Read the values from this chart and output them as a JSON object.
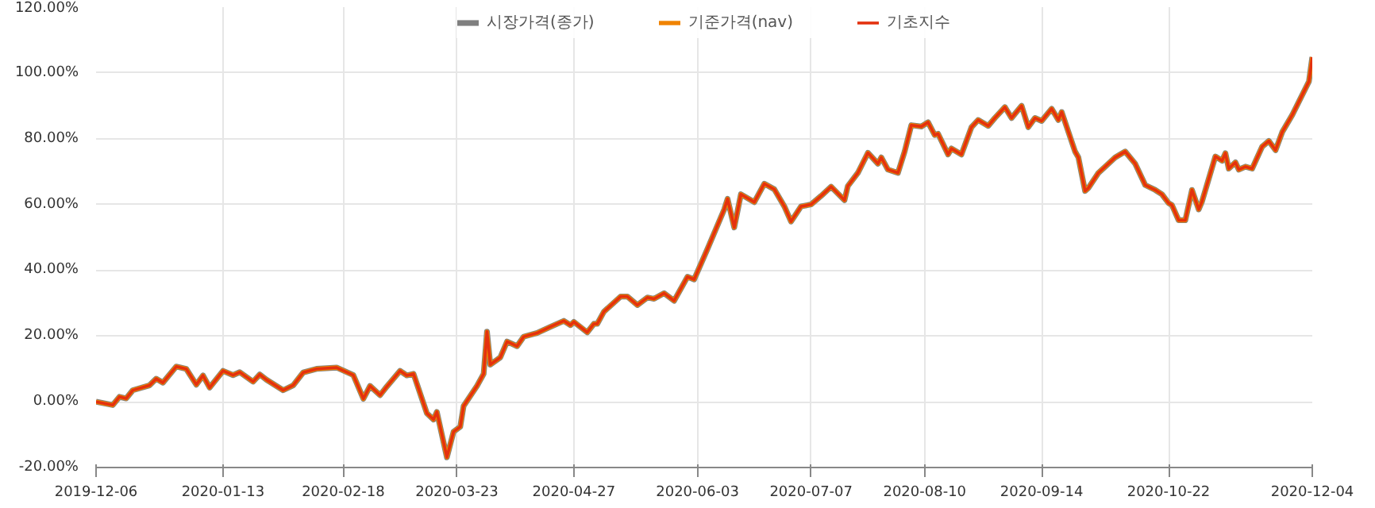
{
  "chart_data": {
    "type": "line",
    "x": [
      "2019-12-06",
      "2019-12-11",
      "2019-12-13",
      "2019-12-15",
      "2019-12-17",
      "2019-12-22",
      "2019-12-24",
      "2019-12-26",
      "2019-12-30",
      "2020-01-02",
      "2020-01-05",
      "2020-01-07",
      "2020-01-09",
      "2020-01-13",
      "2020-01-16",
      "2020-01-18",
      "2020-01-22",
      "2020-01-24",
      "2020-01-26",
      "2020-01-31",
      "2020-02-03",
      "2020-02-06",
      "2020-02-10",
      "2020-02-16",
      "2020-02-21",
      "2020-02-24",
      "2020-02-26",
      "2020-02-29",
      "2020-03-02",
      "2020-03-06",
      "2020-03-08",
      "2020-03-10",
      "2020-03-14",
      "2020-03-16",
      "2020-03-17",
      "2020-03-20",
      "2020-03-22",
      "2020-03-24",
      "2020-03-25",
      "2020-03-29",
      "2020-03-31",
      "2020-04-01",
      "2020-04-02",
      "2020-04-05",
      "2020-04-07",
      "2020-04-10",
      "2020-04-12",
      "2020-04-16",
      "2020-04-20",
      "2020-04-24",
      "2020-04-26",
      "2020-04-27",
      "2020-05-01",
      "2020-05-03",
      "2020-05-04",
      "2020-05-06",
      "2020-05-11",
      "2020-05-13",
      "2020-05-16",
      "2020-05-19",
      "2020-05-21",
      "2020-05-24",
      "2020-05-27",
      "2020-05-31",
      "2020-06-02",
      "2020-06-06",
      "2020-06-11",
      "2020-06-12",
      "2020-06-14",
      "2020-06-16",
      "2020-06-20",
      "2020-06-23",
      "2020-06-26",
      "2020-06-29",
      "2020-07-01",
      "2020-07-04",
      "2020-07-07",
      "2020-07-10",
      "2020-07-13",
      "2020-07-17",
      "2020-07-18",
      "2020-07-21",
      "2020-07-24",
      "2020-07-27",
      "2020-07-28",
      "2020-07-30",
      "2020-08-02",
      "2020-08-04",
      "2020-08-06",
      "2020-08-09",
      "2020-08-11",
      "2020-08-13",
      "2020-08-14",
      "2020-08-17",
      "2020-08-18",
      "2020-08-21",
      "2020-08-24",
      "2020-08-26",
      "2020-08-29",
      "2020-08-31",
      "2020-09-03",
      "2020-09-05",
      "2020-09-08",
      "2020-09-10",
      "2020-09-12",
      "2020-09-14",
      "2020-09-17",
      "2020-09-19",
      "2020-09-20",
      "2020-09-24",
      "2020-09-25",
      "2020-09-27",
      "2020-09-28",
      "2020-10-01",
      "2020-10-06",
      "2020-10-09",
      "2020-10-12",
      "2020-10-15",
      "2020-10-18",
      "2020-10-20",
      "2020-10-22",
      "2020-10-23",
      "2020-10-25",
      "2020-10-27",
      "2020-10-29",
      "2020-10-31",
      "2020-11-01",
      "2020-11-05",
      "2020-11-07",
      "2020-11-08",
      "2020-11-09",
      "2020-11-11",
      "2020-11-12",
      "2020-11-14",
      "2020-11-16",
      "2020-11-19",
      "2020-11-21",
      "2020-11-23",
      "2020-11-25",
      "2020-11-28",
      "2020-12-03",
      "2020-12-04"
    ],
    "series": [
      {
        "name": "시장가격(종가)",
        "color": "#7f7f7f",
        "values": [
          0,
          -1,
          1.5,
          1,
          3.5,
          5,
          7,
          5.8,
          10.7,
          10,
          5.2,
          8,
          4.3,
          9.4,
          8.1,
          9,
          6.1,
          8.3,
          6.7,
          3.5,
          5,
          8.9,
          10,
          10.4,
          8.1,
          0.9,
          4.8,
          2,
          4.6,
          9.4,
          8,
          8.5,
          -3.5,
          -5.4,
          -3.1,
          -16.9,
          -9.1,
          -7.6,
          -1.3,
          4.8,
          8.5,
          21.3,
          11.3,
          13.5,
          18.3,
          16.9,
          19.8,
          20.9,
          22.8,
          24.6,
          23.3,
          24.3,
          21.1,
          23.7,
          23.7,
          27.4,
          32,
          32,
          29.4,
          31.7,
          31.3,
          33,
          30.7,
          38,
          37.2,
          46.5,
          58.5,
          61.7,
          53,
          63.1,
          60.7,
          66.3,
          64.6,
          59.4,
          54.8,
          59.4,
          60,
          62.6,
          65.4,
          61.3,
          65.6,
          69.6,
          75.7,
          72.4,
          74.3,
          70.6,
          69.6,
          76.1,
          84.1,
          83.7,
          85,
          81.1,
          81.5,
          75.2,
          77,
          75.2,
          83.5,
          85.7,
          83.9,
          86.3,
          89.6,
          86.3,
          90,
          83.5,
          86.3,
          85.4,
          89.1,
          85.7,
          88.1,
          76.1,
          74.3,
          64.1,
          65,
          69.6,
          74.3,
          76.1,
          72.4,
          65.9,
          64.4,
          63.1,
          60.4,
          59.8,
          55.2,
          55.2,
          64.4,
          58.5,
          60.9,
          74.6,
          73.3,
          75.6,
          70.9,
          72.8,
          70.6,
          71.5,
          70.9,
          77.6,
          79.3,
          76.5,
          82,
          87.2,
          97.4,
          104.8
        ]
      },
      {
        "name": "기준가격(nav)",
        "color": "#f08300",
        "values": [
          0,
          -1,
          1.5,
          1,
          3.5,
          5,
          7,
          5.8,
          10.7,
          10,
          5.2,
          8,
          4.3,
          9.4,
          8.1,
          9,
          6.1,
          8.3,
          6.7,
          3.5,
          5,
          8.9,
          10,
          10.4,
          8.1,
          0.9,
          4.8,
          2,
          4.6,
          9.4,
          8,
          8.5,
          -3.5,
          -5.4,
          -3.1,
          -16.9,
          -9.1,
          -7.6,
          -1.3,
          4.8,
          8.5,
          21.3,
          11.3,
          13.5,
          18.3,
          16.9,
          19.8,
          20.9,
          22.8,
          24.6,
          23.3,
          24.3,
          21.1,
          23.7,
          23.7,
          27.4,
          32,
          32,
          29.4,
          31.7,
          31.3,
          33,
          30.7,
          38,
          37.2,
          46.5,
          58.5,
          61.7,
          53,
          63.1,
          60.7,
          66.3,
          64.6,
          59.4,
          54.8,
          59.4,
          60,
          62.6,
          65.4,
          61.3,
          65.6,
          69.6,
          75.7,
          72.4,
          74.3,
          70.6,
          69.6,
          76.1,
          84.1,
          83.7,
          85,
          81.1,
          81.5,
          75.2,
          77,
          75.2,
          83.5,
          85.7,
          83.9,
          86.3,
          89.6,
          86.3,
          90,
          83.5,
          86.3,
          85.4,
          89.1,
          85.7,
          88.1,
          76.1,
          74.3,
          64.1,
          65,
          69.6,
          74.3,
          76.1,
          72.4,
          65.9,
          64.4,
          63.1,
          60.4,
          59.8,
          55.2,
          55.2,
          64.4,
          58.5,
          60.9,
          74.6,
          73.3,
          75.6,
          70.9,
          72.8,
          70.6,
          71.5,
          70.9,
          77.6,
          79.3,
          76.5,
          82,
          87.2,
          97.4,
          104.8
        ]
      },
      {
        "name": "기초지수",
        "color": "#e3310f",
        "values": [
          0,
          -1,
          1.5,
          1,
          3.5,
          5,
          7,
          5.8,
          10.7,
          10,
          5.2,
          8,
          4.3,
          9.4,
          8.1,
          9,
          6.1,
          8.3,
          6.7,
          3.5,
          5,
          8.9,
          10,
          10.4,
          8.1,
          0.9,
          4.8,
          2,
          4.6,
          9.4,
          8,
          8.5,
          -3.5,
          -5.4,
          -3.1,
          -16.9,
          -9.1,
          -7.6,
          -1.3,
          4.8,
          8.5,
          21.3,
          11.3,
          13.5,
          18.3,
          16.9,
          19.8,
          20.9,
          22.8,
          24.6,
          23.3,
          24.3,
          21.1,
          23.7,
          23.7,
          27.4,
          32,
          32,
          29.4,
          31.7,
          31.3,
          33,
          30.7,
          38,
          37.2,
          46.5,
          58.5,
          61.7,
          53,
          63.1,
          60.7,
          66.3,
          64.6,
          59.4,
          54.8,
          59.4,
          60,
          62.6,
          65.4,
          61.3,
          65.6,
          69.6,
          75.7,
          72.4,
          74.3,
          70.6,
          69.6,
          76.1,
          84.1,
          83.7,
          85,
          81.1,
          81.5,
          75.2,
          77,
          75.2,
          83.5,
          85.7,
          83.9,
          86.3,
          89.6,
          86.3,
          90,
          83.5,
          86.3,
          85.4,
          89.1,
          85.7,
          88.1,
          76.1,
          74.3,
          64.1,
          65,
          69.6,
          74.3,
          76.1,
          72.4,
          65.9,
          64.4,
          63.1,
          60.4,
          59.8,
          55.2,
          55.2,
          64.4,
          58.5,
          60.9,
          74.6,
          73.3,
          75.6,
          70.9,
          72.8,
          70.6,
          71.5,
          70.9,
          77.6,
          79.3,
          76.5,
          82,
          87.2,
          97.4,
          104.8
        ]
      }
    ],
    "xlim": [
      "2019-12-06",
      "2020-12-04"
    ],
    "xticks": [
      "2019-12-06",
      "2020-01-13",
      "2020-02-18",
      "2020-03-23",
      "2020-04-27",
      "2020-06-03",
      "2020-07-07",
      "2020-08-10",
      "2020-09-14",
      "2020-10-22",
      "2020-12-04"
    ],
    "ylim": [
      -20,
      120
    ],
    "yticks": [
      {
        "value": -20,
        "label": "-20.00%"
      },
      {
        "value": 0,
        "label": "0.00%"
      },
      {
        "value": 20,
        "label": "20.00%"
      },
      {
        "value": 40,
        "label": "40.00%"
      },
      {
        "value": 60,
        "label": "60.00%"
      },
      {
        "value": 80,
        "label": "80.00%"
      },
      {
        "value": 100,
        "label": "100.00%"
      },
      {
        "value": 120,
        "label": "120.00%"
      }
    ],
    "grid": true,
    "legend": "top",
    "marker": "none",
    "line_style": "solid"
  }
}
